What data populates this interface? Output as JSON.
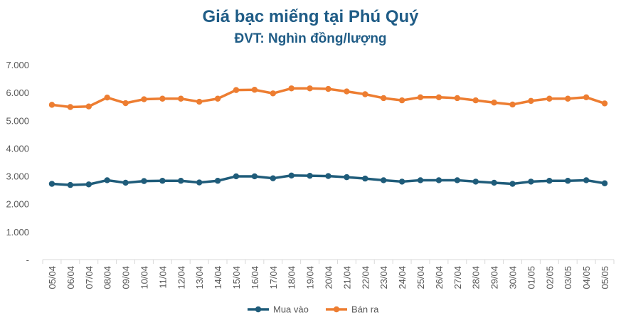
{
  "chart_data": {
    "type": "line",
    "title": "Giá bạc miếng tại Phú Quý",
    "subtitle": "ĐVT: Nghìn đồng/lượng",
    "xlabel": "",
    "ylabel": "",
    "ylim": [
      0,
      7000
    ],
    "yticks": [
      "-",
      "1.000",
      "2.000",
      "3.000",
      "4.000",
      "5.000",
      "6.000",
      "7.000"
    ],
    "grid": false,
    "legend": "bottom",
    "categories": [
      "05/04",
      "06/04",
      "07/04",
      "08/04",
      "09/04",
      "10/04",
      "11/04",
      "12/04",
      "13/04",
      "14/04",
      "15/04",
      "16/04",
      "17/04",
      "18/04",
      "19/04",
      "20/04",
      "21/04",
      "22/04",
      "23/04",
      "24/04",
      "25/04",
      "26/04",
      "27/04",
      "28/04",
      "29/04",
      "30/04",
      "01/05",
      "02/05",
      "03/05",
      "04/05",
      "05/05"
    ],
    "series": [
      {
        "name": "Mua vào",
        "color": "#1f5c7a",
        "values": [
          2720,
          2680,
          2700,
          2850,
          2760,
          2820,
          2830,
          2830,
          2770,
          2830,
          2990,
          2990,
          2920,
          3020,
          3010,
          3000,
          2960,
          2910,
          2850,
          2800,
          2850,
          2850,
          2850,
          2800,
          2760,
          2720,
          2800,
          2830,
          2830,
          2850,
          2740
        ]
      },
      {
        "name": "Bán ra",
        "color": "#ed7d31",
        "values": [
          5560,
          5480,
          5500,
          5820,
          5620,
          5760,
          5780,
          5780,
          5670,
          5780,
          6090,
          6100,
          5970,
          6150,
          6150,
          6130,
          6040,
          5940,
          5800,
          5720,
          5830,
          5830,
          5800,
          5720,
          5640,
          5570,
          5700,
          5780,
          5780,
          5830,
          5610
        ]
      }
    ]
  }
}
